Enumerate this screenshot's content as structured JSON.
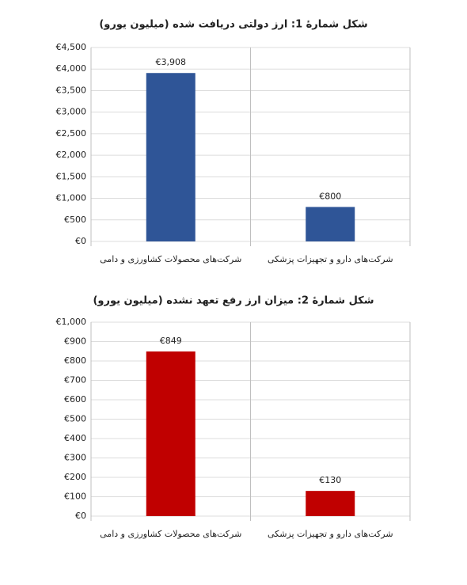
{
  "chart_data": [
    {
      "type": "bar",
      "title": "شکل شمارهٔ 1: ارز دولتی دریافت شده (میلیون یورو)",
      "categories": [
        "شرکت‌های محصولات کشاورزی و دامی",
        "شرکت‌های دارو و تجهیزات پزشکی"
      ],
      "values": [
        3908,
        800
      ],
      "value_labels": [
        "€3,908",
        "€800"
      ],
      "color": "#2f5597",
      "ylim": [
        0,
        4500
      ],
      "yticks": [
        {
          "value": 0,
          "label": "€0"
        },
        {
          "value": 500,
          "label": "€500"
        },
        {
          "value": 1000,
          "label": "€1,000"
        },
        {
          "value": 1500,
          "label": "€1,500"
        },
        {
          "value": 2000,
          "label": "€2,000"
        },
        {
          "value": 2500,
          "label": "€2,500"
        },
        {
          "value": 3000,
          "label": "€3,000"
        },
        {
          "value": 3500,
          "label": "€3,500"
        },
        {
          "value": 4000,
          "label": "€4,000"
        },
        {
          "value": 4500,
          "label": "€4,500"
        }
      ],
      "grid": true
    },
    {
      "type": "bar",
      "title": "شکل شمارهٔ 2: میزان ارز رفع تعهد نشده (میلیون یورو)",
      "categories": [
        "شرکت‌های محصولات کشاورزی و دامی",
        "شرکت‌های دارو و تجهیزات پزشکی"
      ],
      "values": [
        849,
        130
      ],
      "value_labels": [
        "€849",
        "€130"
      ],
      "color": "#c00000",
      "ylim": [
        0,
        1000
      ],
      "yticks": [
        {
          "value": 0,
          "label": "€0"
        },
        {
          "value": 100,
          "label": "€100"
        },
        {
          "value": 200,
          "label": "€200"
        },
        {
          "value": 300,
          "label": "€300"
        },
        {
          "value": 400,
          "label": "€400"
        },
        {
          "value": 500,
          "label": "€500"
        },
        {
          "value": 600,
          "label": "€600"
        },
        {
          "value": 700,
          "label": "€700"
        },
        {
          "value": 800,
          "label": "€800"
        },
        {
          "value": 900,
          "label": "€900"
        },
        {
          "value": 1000,
          "label": "€1,000"
        }
      ],
      "grid": true
    }
  ]
}
